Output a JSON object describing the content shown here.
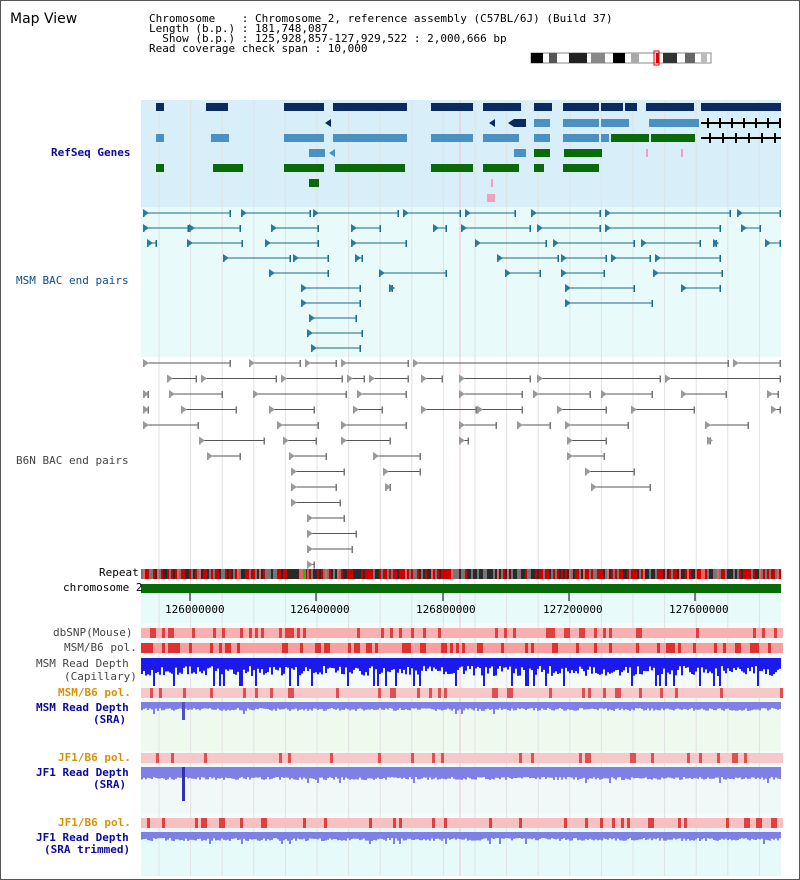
{
  "title": "Map View",
  "info": {
    "chromosome": "Chromosome    : Chromosome 2, reference assembly (C57BL/6J) (Build 37)",
    "length": "Length (b.p.) : 181,748,087",
    "show": "  Show (b.p.) : 125,928,857-127,929,522 : 2,000,666 bp",
    "coverage": "Read coverage check span : 10,000"
  },
  "tracks": {
    "refseq": "RefSeq Genes",
    "msm_bac": "MSM BAC end pairs",
    "b6n_bac": "B6N BAC end pairs",
    "repeat": "Repeat",
    "chromosome": "chromosome 2",
    "dbsnp": "dbSNP(Mouse)",
    "msm_b6_pol_1": "MSM/B6 pol.",
    "msm_read_depth_cap_1": "MSM Read Depth",
    "msm_read_depth_cap_2": "(Capillary)",
    "msm_b6_pol_2": "MSM/B6 pol.",
    "msm_read_depth_sra_1": "MSM Read Depth",
    "msm_read_depth_sra_2": "(SRA)",
    "jf1_b6_pol_1": "JF1/B6 pol.",
    "jf1_read_depth_1": "JF1 Read Depth",
    "jf1_read_depth_2": "(SRA)",
    "jf1_b6_pol_2": "JF1/B6 pol.",
    "jf1_trim_1": "JF1 Read Depth",
    "jf1_trim_2": "(SRA trimmed)"
  },
  "axis": {
    "ticks": [
      "126000000",
      "126400000",
      "126800000",
      "127200000",
      "127600000"
    ]
  },
  "colors": {
    "refseq_bg": "#d8eef8",
    "bac_bg": "#e8fafa",
    "navy_gene": "#0a2a60",
    "mid_gene": "#4a90c0",
    "green_gene": "#0a6a0a",
    "chrom_bar": "#0a6a0a",
    "depth_blue": "#1a1aee",
    "depth_light": "#7f7fe6",
    "snp_pink": "#f0a0a0"
  }
}
